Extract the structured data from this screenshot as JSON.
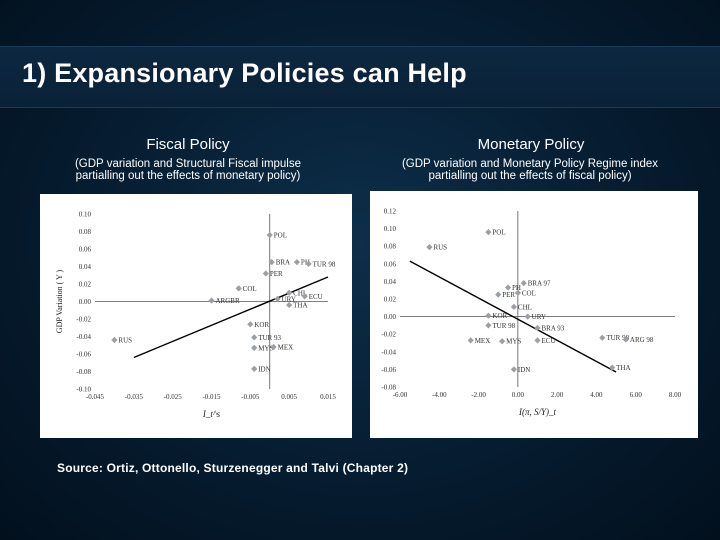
{
  "title": "1) Expansionary Policies can Help",
  "source": "Source: Ortiz, Ottonello, Sturzenegger and Talvi (Chapter 2)",
  "colors": {
    "point": "#9aa0a6",
    "line": "#000000",
    "axis": "#555555"
  },
  "panels": [
    {
      "heading": "Fiscal Policy",
      "subtitle_line1": "(GDP variation and Structural Fiscal impulse",
      "subtitle_line2": "partialling out the effects of monetary policy)"
    },
    {
      "heading": "Monetary Policy",
      "subtitle_line1": "(GDP variation and Monetary Policy Regime index",
      "subtitle_line2": "partialling out the effects of fiscal policy)"
    }
  ],
  "chart_data": [
    {
      "type": "scatter",
      "title": "",
      "xlabel": "I_t^s",
      "ylabel": "GDP Variation ( Y )",
      "xlim": [
        -0.045,
        0.015
      ],
      "ylim": [
        -0.1,
        0.1
      ],
      "x_ticks": [
        "-0.045",
        "-0.035",
        "-0.025",
        "-0.015",
        "-0.005",
        "0.005",
        "0.015"
      ],
      "y_ticks": [
        "0.10",
        "0.08",
        "0.06",
        "0.04",
        "0.02",
        "0.00",
        "-0.02",
        "-0.04",
        "-0.06",
        "-0.08",
        "-0.10"
      ],
      "x_ticks_v": [
        -0.045,
        -0.035,
        -0.025,
        -0.015,
        -0.005,
        0.005,
        0.015
      ],
      "y_ticks_v": [
        0.1,
        0.08,
        0.06,
        0.04,
        0.02,
        0.0,
        -0.02,
        -0.04,
        -0.06,
        -0.08,
        -0.1
      ],
      "points": [
        {
          "label": "POL",
          "x": 0.0,
          "y": 0.076
        },
        {
          "label": "BRA",
          "x": 0.0005,
          "y": 0.045
        },
        {
          "label": "PH",
          "x": 0.007,
          "y": 0.045
        },
        {
          "label": "TUR 98",
          "x": 0.01,
          "y": 0.043
        },
        {
          "label": "PER",
          "x": -0.001,
          "y": 0.032
        },
        {
          "label": "COL",
          "x": -0.008,
          "y": 0.015
        },
        {
          "label": "CHL",
          "x": 0.005,
          "y": 0.01
        },
        {
          "label": "ECU",
          "x": 0.009,
          "y": 0.006
        },
        {
          "label": "URY",
          "x": 0.002,
          "y": 0.003
        },
        {
          "label": "ARGBR",
          "x": -0.015,
          "y": 0.001
        },
        {
          "label": "THA",
          "x": 0.005,
          "y": -0.004
        },
        {
          "label": "KOR",
          "x": -0.005,
          "y": -0.026
        },
        {
          "label": "RUS",
          "x": -0.04,
          "y": -0.044
        },
        {
          "label": "TUR 93",
          "x": -0.004,
          "y": -0.041
        },
        {
          "label": "MYS",
          "x": -0.004,
          "y": -0.053
        },
        {
          "label": "MEX",
          "x": 0.001,
          "y": -0.052
        },
        {
          "label": "IDN",
          "x": -0.004,
          "y": -0.077
        }
      ],
      "fit_line": [
        [
          -0.035,
          -0.064
        ],
        [
          0.015,
          0.028
        ]
      ]
    },
    {
      "type": "scatter",
      "title": "",
      "xlabel": "I(π, S/Y)_t",
      "ylabel": "GDP Variation ( Y )",
      "xlim": [
        -6.0,
        8.0
      ],
      "ylim": [
        -0.08,
        0.12
      ],
      "x_ticks": [
        "-6.00",
        "-4.00",
        "-2.00",
        "0.00",
        "2.00",
        "4.00",
        "6.00",
        "8.00"
      ],
      "y_ticks": [
        "0.12",
        "0.10",
        "0.08",
        "0.06",
        "0.04",
        "0.02",
        "0.00",
        "-0.02",
        "-0.04",
        "-0.06",
        "-0.08"
      ],
      "x_ticks_v": [
        -6,
        -4,
        -2,
        0,
        2,
        4,
        6,
        8
      ],
      "y_ticks_v": [
        0.12,
        0.1,
        0.08,
        0.06,
        0.04,
        0.02,
        0.0,
        -0.02,
        -0.04,
        -0.06,
        -0.08
      ],
      "points": [
        {
          "label": "POL",
          "x": -1.5,
          "y": 0.096
        },
        {
          "label": "RUS",
          "x": -4.5,
          "y": 0.079
        },
        {
          "label": "BRA 97",
          "x": 0.3,
          "y": 0.038
        },
        {
          "label": "PH",
          "x": -0.5,
          "y": 0.033
        },
        {
          "label": "COL",
          "x": 0.0,
          "y": 0.027
        },
        {
          "label": "PER",
          "x": -1.0,
          "y": 0.025
        },
        {
          "label": "CHL",
          "x": -0.2,
          "y": 0.011
        },
        {
          "label": "KOR",
          "x": -1.5,
          "y": 0.001
        },
        {
          "label": "URY",
          "x": 0.5,
          "y": 0.0
        },
        {
          "label": "TUR 98",
          "x": -1.5,
          "y": -0.01
        },
        {
          "label": "BRA 93",
          "x": 1.0,
          "y": -0.013
        },
        {
          "label": "TUR 98",
          "x": 4.3,
          "y": -0.024
        },
        {
          "label": "ARG 98",
          "x": 5.5,
          "y": -0.026
        },
        {
          "label": "ECU",
          "x": 1.0,
          "y": -0.027
        },
        {
          "label": "MEX",
          "x": -2.4,
          "y": -0.027
        },
        {
          "label": "MYS",
          "x": -0.8,
          "y": -0.028
        },
        {
          "label": "IDN",
          "x": -0.2,
          "y": -0.06
        },
        {
          "label": "THA",
          "x": 4.8,
          "y": -0.058
        }
      ],
      "fit_line": [
        [
          -5.5,
          0.063
        ],
        [
          5.0,
          -0.063
        ]
      ]
    }
  ]
}
